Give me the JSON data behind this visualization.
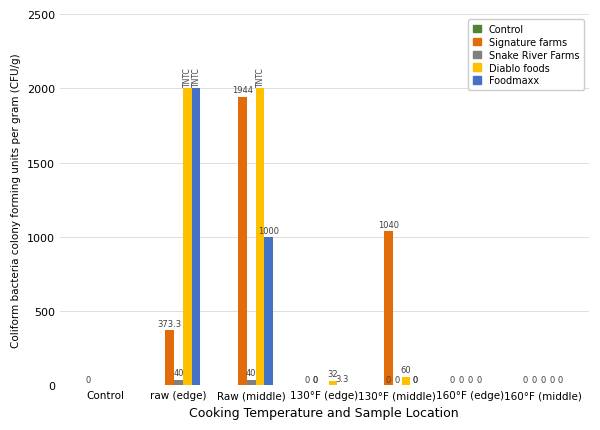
{
  "categories": [
    "Control",
    "raw (edge)",
    "Raw (middle)",
    "130°F (edge)",
    "130°F (middle)",
    "160°F (edge)",
    "160°F (middle)"
  ],
  "series": {
    "Control": [
      0,
      0,
      0,
      0,
      0,
      0,
      0
    ],
    "Signature farms": [
      0,
      373.3,
      1944,
      0,
      1040,
      0,
      0
    ],
    "Snake River Farms": [
      0,
      40,
      40,
      0,
      0,
      0,
      0
    ],
    "Diablo foods": [
      0,
      2000,
      2000,
      32,
      60,
      0,
      0
    ],
    "Foodmaxx": [
      0,
      2000,
      1000,
      3.3,
      0,
      0,
      0
    ]
  },
  "annotations": {
    "Control": [
      null,
      null,
      null,
      null,
      null,
      null,
      null
    ],
    "Signature farms": [
      null,
      "373.3",
      "1944",
      null,
      "1040",
      null,
      null
    ],
    "Snake River Farms": [
      null,
      "40",
      "40",
      null,
      null,
      null,
      null
    ],
    "Diablo foods": [
      null,
      "TNTC",
      "TNTC",
      "32",
      "60",
      null,
      null
    ],
    "Foodmaxx": [
      null,
      "TNTC",
      "1000",
      "3.3",
      null,
      null,
      null
    ]
  },
  "zero_labels": {
    "Control": [
      true,
      false,
      false,
      false,
      false,
      false,
      false
    ],
    "Signature farms": [
      false,
      false,
      false,
      true,
      false,
      false,
      false
    ],
    "Snake River Farms": [
      false,
      false,
      false,
      false,
      false,
      false,
      false
    ],
    "Diablo foods": [
      false,
      false,
      false,
      false,
      false,
      false,
      false
    ],
    "Foodmaxx": [
      false,
      false,
      false,
      false,
      true,
      false,
      false
    ]
  },
  "zero_labels_160edge": [
    true,
    true,
    true,
    true
  ],
  "zero_labels_160mid": [
    true,
    true,
    true,
    true
  ],
  "colors": {
    "Control": "#548235",
    "Signature farms": "#E36C0A",
    "Snake River Farms": "#7F7F7F",
    "Diablo foods": "#FFC000",
    "Foodmaxx": "#4472C4"
  },
  "xlabel": "Cooking Temperature and Sample Location",
  "ylabel": "Coliform bacteria colony forming units per gram (CFU/g)",
  "ylim": [
    0,
    2500
  ],
  "yticks": [
    0,
    500,
    1000,
    1500,
    2000,
    2500
  ],
  "bar_width": 0.12,
  "figsize": [
    6.0,
    4.31
  ],
  "dpi": 100
}
